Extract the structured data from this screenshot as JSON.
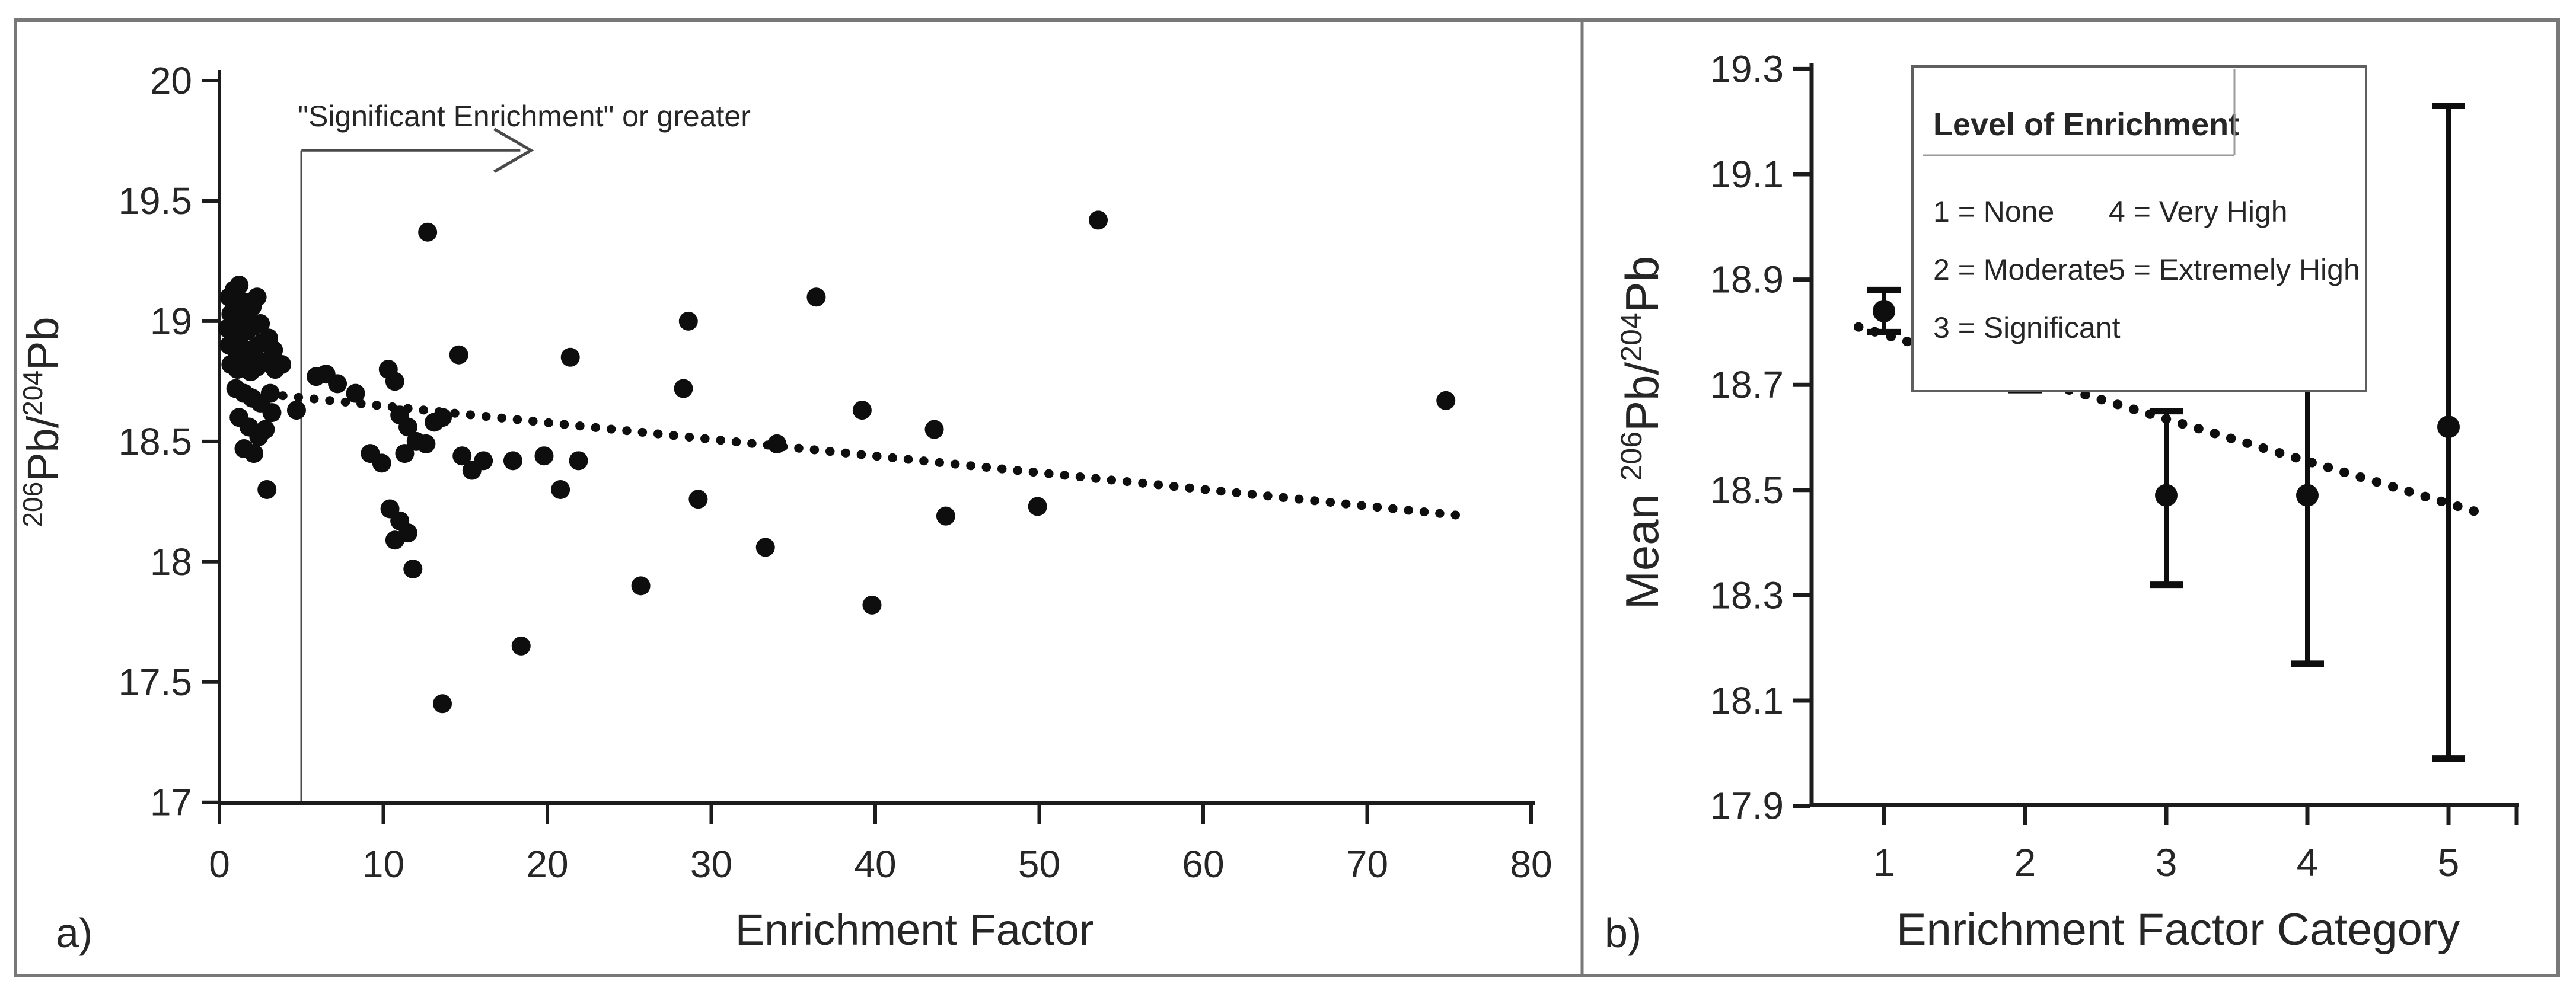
{
  "figure": {
    "background": "#ffffff",
    "border_color": "#787878",
    "ink_color": "#1c1c1c",
    "point_color": "#0e0e0e",
    "annotation_color": "#4a4a4a"
  },
  "chart_data": [
    {
      "type": "scatter",
      "panel_label": "a)",
      "xlabel": "Enrichment Factor",
      "ylabel_parts": [
        {
          "t": "206",
          "sup": true
        },
        {
          "t": "Pb/",
          "sup": false
        },
        {
          "t": "204",
          "sup": true
        },
        {
          "t": "Pb",
          "sup": false
        }
      ],
      "xlim": [
        0,
        80
      ],
      "ylim": [
        17,
        20
      ],
      "xticks": [
        0,
        10,
        20,
        30,
        40,
        50,
        60,
        70,
        80
      ],
      "xtick_labels": [
        "0",
        "10",
        "20",
        "30",
        "40",
        "50",
        "60",
        "70",
        "80"
      ],
      "yticks": [
        20,
        19.5,
        19,
        18.5,
        18,
        17.5,
        17
      ],
      "ytick_labels": [
        "20",
        "19.5",
        "19",
        "18.5",
        "18",
        "17.5",
        "17"
      ],
      "grid": false,
      "trend": {
        "style": "dotted",
        "x1": 1.0,
        "y1": 18.71,
        "x2": 76.0,
        "y2": 18.19
      },
      "annotation": {
        "text": "\"Significant Enrichment\" or greater",
        "threshold_x": 5,
        "arrow_to_x": 19,
        "arrow_y": 19.71,
        "text_y": 19.81
      },
      "points": [
        [
          0.6,
          19.1
        ],
        [
          0.9,
          19.13
        ],
        [
          1.2,
          19.15
        ],
        [
          1.5,
          19.08
        ],
        [
          0.7,
          19.03
        ],
        [
          1.1,
          19.05
        ],
        [
          1.6,
          19.02
        ],
        [
          2.0,
          19.06
        ],
        [
          2.3,
          19.1
        ],
        [
          0.5,
          18.97
        ],
        [
          0.8,
          18.95
        ],
        [
          1.3,
          18.97
        ],
        [
          1.7,
          18.96
        ],
        [
          2.1,
          18.98
        ],
        [
          2.5,
          18.99
        ],
        [
          0.6,
          18.9
        ],
        [
          1.0,
          18.88
        ],
        [
          1.4,
          18.89
        ],
        [
          1.8,
          18.87
        ],
        [
          2.2,
          18.89
        ],
        [
          2.6,
          18.91
        ],
        [
          3.0,
          18.93
        ],
        [
          3.3,
          18.88
        ],
        [
          0.7,
          18.82
        ],
        [
          1.1,
          18.8
        ],
        [
          1.5,
          18.81
        ],
        [
          1.9,
          18.79
        ],
        [
          2.3,
          18.81
        ],
        [
          2.8,
          18.83
        ],
        [
          3.4,
          18.8
        ],
        [
          3.8,
          18.82
        ],
        [
          1.0,
          18.72
        ],
        [
          1.5,
          18.7
        ],
        [
          2.0,
          18.68
        ],
        [
          2.5,
          18.66
        ],
        [
          3.1,
          18.7
        ],
        [
          1.2,
          18.6
        ],
        [
          1.8,
          18.56
        ],
        [
          2.4,
          18.52
        ],
        [
          1.5,
          18.47
        ],
        [
          2.1,
          18.45
        ],
        [
          2.8,
          18.55
        ],
        [
          3.2,
          18.62
        ],
        [
          2.9,
          18.3
        ],
        [
          4.7,
          18.63
        ],
        [
          5.9,
          18.77
        ],
        [
          6.5,
          18.78
        ],
        [
          7.2,
          18.74
        ],
        [
          8.3,
          18.7
        ],
        [
          10.3,
          18.8
        ],
        [
          10.7,
          18.75
        ],
        [
          11.0,
          18.61
        ],
        [
          11.5,
          18.56
        ],
        [
          9.2,
          18.45
        ],
        [
          9.9,
          18.41
        ],
        [
          11.3,
          18.45
        ],
        [
          12.0,
          18.5
        ],
        [
          12.6,
          18.49
        ],
        [
          13.1,
          18.58
        ],
        [
          13.6,
          18.6
        ],
        [
          14.8,
          18.44
        ],
        [
          15.4,
          18.38
        ],
        [
          16.1,
          18.42
        ],
        [
          10.4,
          18.22
        ],
        [
          11.0,
          18.17
        ],
        [
          10.7,
          18.09
        ],
        [
          11.5,
          18.12
        ],
        [
          11.8,
          17.97
        ],
        [
          13.6,
          17.41
        ],
        [
          18.4,
          17.65
        ],
        [
          17.9,
          18.42
        ],
        [
          19.8,
          18.44
        ],
        [
          20.8,
          18.3
        ],
        [
          21.9,
          18.42
        ],
        [
          14.6,
          18.86
        ],
        [
          21.4,
          18.85
        ],
        [
          12.7,
          19.37
        ],
        [
          25.7,
          17.9
        ],
        [
          28.6,
          19.0
        ],
        [
          28.3,
          18.72
        ],
        [
          29.2,
          18.26
        ],
        [
          33.3,
          18.06
        ],
        [
          34.0,
          18.49
        ],
        [
          36.4,
          19.1
        ],
        [
          39.2,
          18.63
        ],
        [
          39.8,
          17.82
        ],
        [
          43.6,
          18.55
        ],
        [
          44.3,
          18.19
        ],
        [
          49.9,
          18.23
        ],
        [
          53.6,
          19.42
        ],
        [
          74.8,
          18.67
        ]
      ]
    },
    {
      "type": "scatter",
      "subtype": "means-with-error-bars",
      "panel_label": "b)",
      "xlabel": "Enrichment Factor Category",
      "ylabel_parts": [
        {
          "t": "Mean ",
          "sup": false
        },
        {
          "t": "206",
          "sup": true
        },
        {
          "t": "Pb/",
          "sup": false
        },
        {
          "t": "204",
          "sup": true
        },
        {
          "t": "Pb",
          "sup": false
        }
      ],
      "ylim": [
        17.9,
        19.3
      ],
      "yticks": [
        19.3,
        19.1,
        18.9,
        18.7,
        18.5,
        18.3,
        18.1,
        17.9
      ],
      "ytick_labels": [
        "19.3",
        "19.1",
        "18.9",
        "18.7",
        "18.5",
        "18.3",
        "18.1",
        "17.9"
      ],
      "categories": [
        "1",
        "2",
        "3",
        "4",
        "5"
      ],
      "series": [
        {
          "category": "1",
          "mean": 18.84,
          "lo": 18.8,
          "hi": 18.88
        },
        {
          "category": "2",
          "mean": 18.77,
          "lo": 18.69,
          "hi": 18.83
        },
        {
          "category": "3",
          "mean": 18.49,
          "lo": 18.32,
          "hi": 18.65
        },
        {
          "category": "4",
          "mean": 18.49,
          "lo": 18.17,
          "hi": 18.82
        },
        {
          "category": "5",
          "mean": 18.62,
          "lo": 17.99,
          "hi": 19.23
        }
      ],
      "trend": {
        "style": "dotted",
        "x1": 0.82,
        "y1": 18.81,
        "x2": 5.18,
        "y2": 18.46
      },
      "legend": {
        "title": "Level of Enrichment",
        "col1": [
          "1 = None",
          "2 = Moderate",
          "3 = Significant"
        ],
        "col2": [
          "4 = Very High",
          "5 = Extremely High"
        ]
      }
    }
  ]
}
